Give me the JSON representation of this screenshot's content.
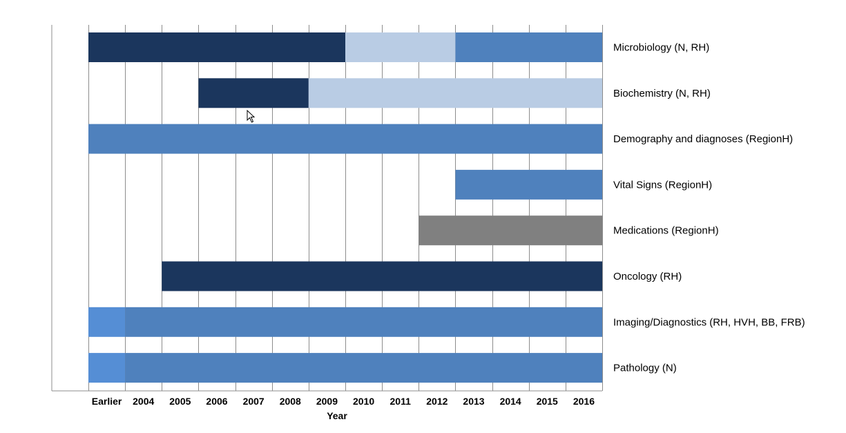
{
  "chart_data": {
    "type": "gantt",
    "xlabel": "Year",
    "categories": [
      "Earlier",
      "2004",
      "2005",
      "2006",
      "2007",
      "2008",
      "2009",
      "2010",
      "2011",
      "2012",
      "2013",
      "2014",
      "2015",
      "2016"
    ],
    "colors": {
      "dark": "#1b365d",
      "light": "#b9cce4",
      "medium": "#4f81bd",
      "gray": "#808080",
      "bright": "#558ed5"
    },
    "rows": [
      {
        "name": "Microbiology (N, RH)",
        "segments": [
          {
            "start": "Earlier",
            "end": "2009",
            "color": "dark"
          },
          {
            "start": "2010",
            "end": "2012",
            "color": "light"
          },
          {
            "start": "2013",
            "end": "2016",
            "color": "medium"
          }
        ]
      },
      {
        "name": "Biochemistry (N, RH)",
        "segments": [
          {
            "start": "2006",
            "end": "2008",
            "color": "dark"
          },
          {
            "start": "2009",
            "end": "2016",
            "color": "light"
          }
        ]
      },
      {
        "name": "Demography and diagnoses (RegionH)",
        "segments": [
          {
            "start": "Earlier",
            "end": "2016",
            "color": "medium"
          }
        ]
      },
      {
        "name": "Vital Signs (RegionH)",
        "segments": [
          {
            "start": "2013",
            "end": "2016",
            "color": "medium"
          }
        ]
      },
      {
        "name": "Medications (RegionH)",
        "segments": [
          {
            "start": "2012",
            "end": "2016",
            "color": "gray"
          }
        ]
      },
      {
        "name": "Oncology (RH)",
        "segments": [
          {
            "start": "2005",
            "end": "2016",
            "color": "dark"
          }
        ]
      },
      {
        "name": "Imaging/Diagnostics (RH, HVH, BB, FRB)",
        "segments": [
          {
            "start": "Earlier",
            "end": "Earlier",
            "color": "bright"
          },
          {
            "start": "2004",
            "end": "2016",
            "color": "medium"
          }
        ]
      },
      {
        "name": "Pathology (N)",
        "segments": [
          {
            "start": "Earlier",
            "end": "Earlier",
            "color": "bright"
          },
          {
            "start": "2004",
            "end": "2016",
            "color": "medium"
          }
        ]
      }
    ]
  }
}
